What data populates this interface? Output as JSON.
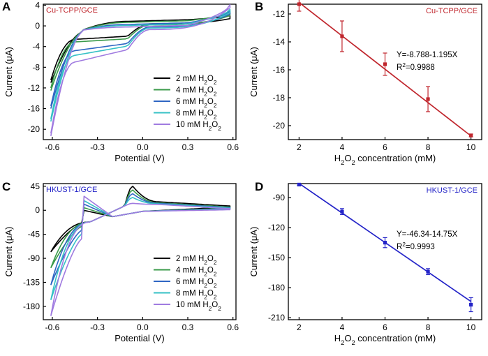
{
  "figure": {
    "panels": [
      "A",
      "B",
      "C",
      "D"
    ]
  },
  "chart_data": [
    {
      "panel": "A",
      "type": "line",
      "title": "Cu-TCPP/GCE",
      "title_color": "#c0262d",
      "xlabel": "Potential (V)",
      "ylabel": "Current (μA)",
      "xlim": [
        -0.66,
        0.62
      ],
      "ylim": [
        -22,
        4.2
      ],
      "xticks": [
        -0.6,
        -0.3,
        0.0,
        0.3,
        0.6
      ],
      "xtick_labels": [
        "-0.6",
        "-0.3",
        "0.0",
        "0.3",
        "0.6"
      ],
      "yticks": [
        4,
        0,
        -4,
        -8,
        -12,
        -16,
        -20
      ],
      "ytick_labels": [
        "4",
        "0",
        "-4",
        "-8",
        "-12",
        "-16",
        "-20"
      ],
      "legend_position": "bottom-right",
      "series": [
        {
          "name": "2 mM H2O2",
          "label_main": "2 mM H",
          "color": "#000000",
          "start": -10.5,
          "peak": -2.6,
          "anodic_mid": 0.4,
          "anodic_end": 1.4,
          "cathodic_mid": 0.5,
          "cathodic_low": -2.0
        },
        {
          "name": "4 mM H2O2",
          "label_main": "4 mM H",
          "color": "#3a9a4a",
          "start": -12.0,
          "peak": -3.1,
          "anodic_mid": 0.2,
          "anodic_end": 2.0,
          "cathodic_mid": 0.3,
          "cathodic_low": -2.5
        },
        {
          "name": "6 mM H2O2",
          "label_main": "6 mM H",
          "color": "#2f66c3",
          "start": -15.5,
          "peak": -4.8,
          "anodic_mid": -0.2,
          "anodic_end": 2.3,
          "cathodic_mid": -0.1,
          "cathodic_low": -3.4
        },
        {
          "name": "8 mM H2O2",
          "label_main": "8 mM H",
          "color": "#35c1c6",
          "start": -18.0,
          "peak": -5.7,
          "anodic_mid": -0.4,
          "anodic_end": 2.6,
          "cathodic_mid": -0.3,
          "cathodic_low": -3.9
        },
        {
          "name": "10 mM H2O2",
          "label_main": "10 mM H",
          "color": "#a07be0",
          "start": -20.8,
          "peak": -7.0,
          "anodic_mid": -0.7,
          "anodic_end": 3.5,
          "cathodic_mid": -0.6,
          "cathodic_low": -4.6
        }
      ]
    },
    {
      "panel": "B",
      "type": "scatter",
      "title": "Cu-TCPP/GCE",
      "title_color": "#c0262d",
      "xlabel_main": "H",
      "xlabel_tail": " concentration (mM)",
      "ylabel": "Current (μA)",
      "xlim": [
        1.5,
        10.5
      ],
      "ylim": [
        -21,
        -11.3
      ],
      "xticks": [
        2,
        4,
        6,
        8,
        10
      ],
      "xtick_labels": [
        "2",
        "4",
        "6",
        "8",
        "10"
      ],
      "yticks": [
        -12,
        -14,
        -16,
        -18,
        -20
      ],
      "ytick_labels": [
        "-12",
        "-14",
        "-16",
        "-18",
        "-20"
      ],
      "color": "#c0262d",
      "x": [
        2,
        4,
        6,
        8,
        10
      ],
      "y": [
        -11.3,
        -13.6,
        -15.6,
        -18.1,
        -20.7
      ],
      "err": [
        0.5,
        1.1,
        0.8,
        0.9,
        0.1
      ],
      "fit": {
        "intercept": -8.788,
        "slope": -1.195
      },
      "equation": "Y=-8.788-1.195X",
      "r2_prefix": "R",
      "r2_sup": "2",
      "r2_value": "=0.9988"
    },
    {
      "panel": "C",
      "type": "line",
      "title": "HKUST-1/GCE",
      "title_color": "#2424c8",
      "xlabel": "Potential (V)",
      "ylabel": "Current (μA)",
      "xlim": [
        -0.66,
        0.62
      ],
      "ylim": [
        -205,
        50
      ],
      "xticks": [
        -0.6,
        -0.3,
        0.0,
        0.3,
        0.6
      ],
      "xtick_labels": [
        "-0.6",
        "-0.3",
        "0.0",
        "0.3",
        "0.6"
      ],
      "yticks": [
        45,
        0,
        -45,
        -90,
        -135,
        -180
      ],
      "ytick_labels": [
        "45",
        "0",
        "-45",
        "-90",
        "-135",
        "-180"
      ],
      "legend_position": "bottom-right",
      "series": [
        {
          "name": "2 mM H2O2",
          "label_main": "2 mM H",
          "color": "#000000",
          "start": -78,
          "peak": 45,
          "cath_start": -70,
          "lowend": 6,
          "upend": 8
        },
        {
          "name": "4 mM H2O2",
          "label_main": "4 mM H",
          "color": "#3a9a4a",
          "start": -108,
          "peak": 38,
          "cath_start": -85,
          "lowend": 4,
          "upend": 6
        },
        {
          "name": "6 mM H2O2",
          "label_main": "6 mM H",
          "color": "#2f66c3",
          "start": -140,
          "peak": 31,
          "cath_start": -105,
          "lowend": 3,
          "upend": 5
        },
        {
          "name": "8 mM H2O2",
          "label_main": "8 mM H",
          "color": "#35c1c6",
          "start": -168,
          "peak": 24,
          "cath_start": -125,
          "lowend": 2,
          "upend": 4
        },
        {
          "name": "10 mM H2O2",
          "label_main": "10 mM H",
          "color": "#a07be0",
          "start": -198,
          "peak": 13,
          "cath_start": -150,
          "lowend": 1,
          "upend": 3
        }
      ]
    },
    {
      "panel": "D",
      "type": "scatter",
      "title": "HKUST-1/GCE",
      "title_color": "#2424c8",
      "xlabel_main": "H",
      "xlabel_tail": " concentration (mM)",
      "ylabel": "Current (μA)",
      "xlim": [
        1.5,
        10.5
      ],
      "ylim": [
        -212,
        -76
      ],
      "xticks": [
        2,
        4,
        6,
        8,
        10
      ],
      "xtick_labels": [
        "2",
        "4",
        "6",
        "8",
        "10"
      ],
      "yticks": [
        -90,
        -120,
        -150,
        -180,
        -210
      ],
      "ytick_labels": [
        "-90",
        "-120",
        "-150",
        "-180",
        "-210"
      ],
      "color": "#2424c8",
      "x": [
        2,
        4,
        6,
        8,
        10
      ],
      "y": [
        -77,
        -104,
        -135,
        -164,
        -197
      ],
      "err": [
        1,
        3,
        5,
        3,
        7
      ],
      "fit": {
        "intercept": -46.34,
        "slope": -14.75
      },
      "equation": "Y=-46.34-14.75X",
      "r2_prefix": "R",
      "r2_sup": "2",
      "r2_value": "=0.9993"
    }
  ]
}
